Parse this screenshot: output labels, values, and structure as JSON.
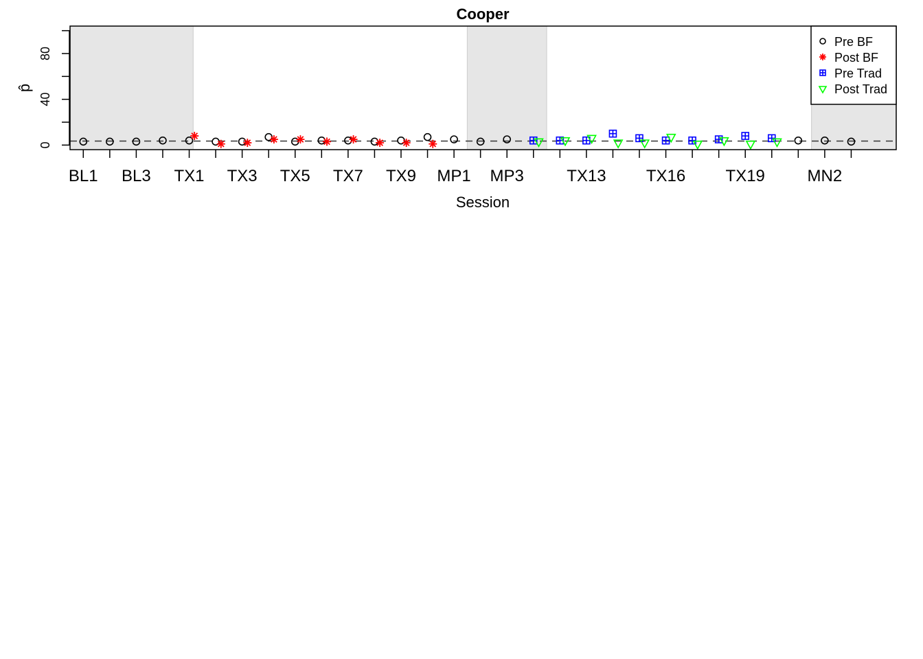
{
  "chart_data": {
    "type": "scatter",
    "title": "Cooper",
    "xlabel": "Session",
    "ylabel": "p̂",
    "ylim": [
      0,
      100
    ],
    "yticks": [
      0,
      40,
      80
    ],
    "yticks_minor": [
      20,
      60,
      100
    ],
    "reference_line": 3.5,
    "x_tick_labels": [
      {
        "session": 1,
        "label": "BL1"
      },
      {
        "session": 3,
        "label": "BL3"
      },
      {
        "session": 5,
        "label": "TX1"
      },
      {
        "session": 7,
        "label": "TX3"
      },
      {
        "session": 9,
        "label": "TX5"
      },
      {
        "session": 11,
        "label": "TX7"
      },
      {
        "session": 13,
        "label": "TX9"
      },
      {
        "session": 15,
        "label": "MP1"
      },
      {
        "session": 17,
        "label": "MP3"
      },
      {
        "session": 20,
        "label": "TX13"
      },
      {
        "session": 23,
        "label": "TX16"
      },
      {
        "session": 26,
        "label": "TX19"
      },
      {
        "session": 29,
        "label": "MN2"
      }
    ],
    "shaded_phases": [
      [
        0.5,
        5.15
      ],
      [
        15.5,
        18.5
      ],
      [
        28.5,
        31.7
      ]
    ],
    "legend": {
      "position": "top-right",
      "entries": [
        {
          "name": "Pre BF",
          "marker": "circle",
          "color": "#000000"
        },
        {
          "name": "Post BF",
          "marker": "asterisk",
          "color": "#ff0000"
        },
        {
          "name": "Pre Trad",
          "marker": "boxplus",
          "color": "#0000ff"
        },
        {
          "name": "Post Trad",
          "marker": "triangle-down",
          "color": "#00ff00"
        }
      ]
    },
    "series": [
      {
        "name": "Pre BF",
        "marker": "circle",
        "color": "#000000",
        "points": [
          {
            "x": 1,
            "y": 3
          },
          {
            "x": 2,
            "y": 3
          },
          {
            "x": 3,
            "y": 3
          },
          {
            "x": 4,
            "y": 4
          },
          {
            "x": 5,
            "y": 4
          },
          {
            "x": 6,
            "y": 3
          },
          {
            "x": 7,
            "y": 3
          },
          {
            "x": 8,
            "y": 7
          },
          {
            "x": 9,
            "y": 3
          },
          {
            "x": 10,
            "y": 4
          },
          {
            "x": 11,
            "y": 4
          },
          {
            "x": 12,
            "y": 3
          },
          {
            "x": 13,
            "y": 4
          },
          {
            "x": 14,
            "y": 7
          },
          {
            "x": 15,
            "y": 5
          },
          {
            "x": 16,
            "y": 3
          },
          {
            "x": 17,
            "y": 5
          },
          {
            "x": 28,
            "y": 4
          },
          {
            "x": 29,
            "y": 4
          },
          {
            "x": 30,
            "y": 3
          }
        ]
      },
      {
        "name": "Post BF",
        "marker": "asterisk",
        "color": "#ff0000",
        "points": [
          {
            "x": 5.2,
            "y": 8
          },
          {
            "x": 6.2,
            "y": 1
          },
          {
            "x": 7.2,
            "y": 2
          },
          {
            "x": 8.2,
            "y": 5
          },
          {
            "x": 9.2,
            "y": 5
          },
          {
            "x": 10.2,
            "y": 3
          },
          {
            "x": 11.2,
            "y": 5
          },
          {
            "x": 12.2,
            "y": 2
          },
          {
            "x": 13.2,
            "y": 2
          },
          {
            "x": 14.2,
            "y": 1
          }
        ]
      },
      {
        "name": "Pre Trad",
        "marker": "boxplus",
        "color": "#0000ff",
        "points": [
          {
            "x": 18,
            "y": 4
          },
          {
            "x": 19,
            "y": 4
          },
          {
            "x": 20,
            "y": 4
          },
          {
            "x": 21,
            "y": 10
          },
          {
            "x": 22,
            "y": 6
          },
          {
            "x": 23,
            "y": 4
          },
          {
            "x": 24,
            "y": 4
          },
          {
            "x": 25,
            "y": 5
          },
          {
            "x": 26,
            "y": 8
          },
          {
            "x": 27,
            "y": 6
          }
        ]
      },
      {
        "name": "Post Trad",
        "marker": "triangle-down",
        "color": "#00ff00",
        "points": [
          {
            "x": 18.2,
            "y": 3
          },
          {
            "x": 19.2,
            "y": 4
          },
          {
            "x": 20.2,
            "y": 6
          },
          {
            "x": 21.2,
            "y": 2
          },
          {
            "x": 22.2,
            "y": 2
          },
          {
            "x": 23.2,
            "y": 7
          },
          {
            "x": 24.2,
            "y": 1
          },
          {
            "x": 25.2,
            "y": 4
          },
          {
            "x": 26.2,
            "y": 1
          },
          {
            "x": 27.2,
            "y": 3
          }
        ]
      }
    ]
  }
}
